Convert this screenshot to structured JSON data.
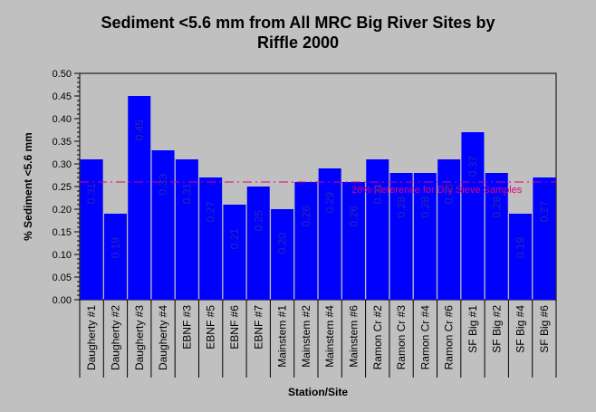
{
  "chart_data": {
    "type": "bar",
    "title_line1": "Sediment <5.6 mm from All MRC Big River Sites by",
    "title_line2": "Riffle 2000",
    "xlabel": "Station/Site",
    "ylabel": "% Sediment <5.6 mm",
    "ylim": [
      0,
      0.5
    ],
    "yticks": [
      "0.00",
      "0.05",
      "0.10",
      "0.15",
      "0.20",
      "0.25",
      "0.30",
      "0.35",
      "0.40",
      "0.45",
      "0.50"
    ],
    "categories": [
      "Daugherty #1",
      "Daugherty #2",
      "Daugherty #3",
      "Daugherty #4",
      "EBNF #3",
      "EBNF #5",
      "EBNF #6",
      "EBNF #7",
      "Mainstem #1",
      "Mainstem #2",
      "Mainstem #4",
      "Mainstem #6",
      "Ramon Cr #2",
      "Ramon Cr #3",
      "Ramon Cr #4",
      "Ramon Cr #6",
      "SF Big #1",
      "SF Big #2",
      "SF Big #4",
      "SF Big #6"
    ],
    "values": [
      0.31,
      0.19,
      0.45,
      0.33,
      0.31,
      0.27,
      0.21,
      0.25,
      0.2,
      0.26,
      0.29,
      0.26,
      0.31,
      0.28,
      0.28,
      0.31,
      0.37,
      0.28,
      0.19,
      0.27
    ],
    "data_labels": [
      "0.31",
      "0.19",
      "0.45",
      "0.33",
      "0.31",
      "0.27",
      "0.21",
      "0.25",
      "0.20",
      "0.26",
      "0.29",
      "0.26",
      "0.31",
      "0.28",
      "0.28",
      "0.31",
      "0.37",
      "0.28",
      "0.19",
      "0.27"
    ],
    "reference": {
      "value": 0.26,
      "label": "26% Reference for Dry Sieve Samples"
    },
    "bar_color": "#0000ff",
    "reference_color": "#e0007a",
    "plot_background": "#c0c0c0",
    "grid": false,
    "legend": "none"
  }
}
